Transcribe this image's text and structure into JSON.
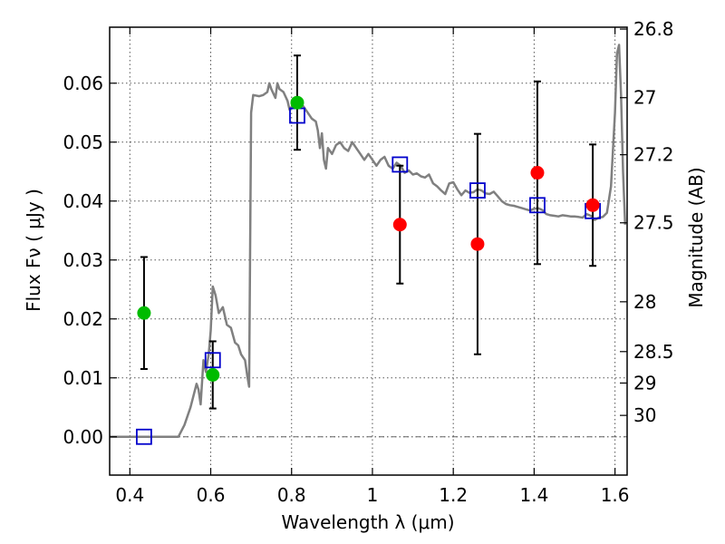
{
  "chart_data": {
    "type": "scatter",
    "xlabel": "Wavelength  λ (μm)",
    "ylabel": "Flux  Fν  ( μJy )",
    "y2label": "Magnitude (AB)",
    "xlim": [
      0.35,
      1.63
    ],
    "ylim": [
      -0.0065,
      0.0695
    ],
    "grid": true,
    "xticks": [
      {
        "value": 0.4,
        "label": "0.4"
      },
      {
        "value": 0.6,
        "label": "0.6"
      },
      {
        "value": 0.8,
        "label": "0.8"
      },
      {
        "value": 1.0,
        "label": "1"
      },
      {
        "value": 1.2,
        "label": "1.2"
      },
      {
        "value": 1.4,
        "label": "1.4"
      },
      {
        "value": 1.6,
        "label": "1.6"
      }
    ],
    "yticks": [
      {
        "value": 0.0,
        "label": "0.00"
      },
      {
        "value": 0.01,
        "label": "0.01"
      },
      {
        "value": 0.02,
        "label": "0.02"
      },
      {
        "value": 0.03,
        "label": "0.03"
      },
      {
        "value": 0.04,
        "label": "0.04"
      },
      {
        "value": 0.05,
        "label": "0.05"
      },
      {
        "value": 0.06,
        "label": "0.06"
      }
    ],
    "y2ticks": [
      {
        "label": "26.8"
      },
      {
        "label": "27"
      },
      {
        "label": "27.2"
      },
      {
        "label": "27.5"
      },
      {
        "label": "28"
      },
      {
        "label": "28.5"
      },
      {
        "label": "29"
      },
      {
        "label": "30"
      }
    ],
    "colors": {
      "model": "#808080",
      "detected": "#00bb00",
      "observed": "#ff0000",
      "synthetic": "#0000cc",
      "errorbar": "#000000",
      "grid": "#555555",
      "zero_line": "#666666"
    },
    "series": [
      {
        "style": "line",
        "color": "#808080",
        "points": [
          [
            0.35,
            0.0
          ],
          [
            0.52,
            0.0
          ],
          [
            0.535,
            0.002
          ],
          [
            0.55,
            0.005
          ],
          [
            0.565,
            0.009
          ],
          [
            0.57,
            0.008
          ],
          [
            0.575,
            0.0055
          ],
          [
            0.582,
            0.013
          ],
          [
            0.588,
            0.011
          ],
          [
            0.595,
            0.014
          ],
          [
            0.6,
            0.018
          ],
          [
            0.605,
            0.0255
          ],
          [
            0.612,
            0.024
          ],
          [
            0.62,
            0.021
          ],
          [
            0.63,
            0.022
          ],
          [
            0.64,
            0.019
          ],
          [
            0.65,
            0.0185
          ],
          [
            0.66,
            0.016
          ],
          [
            0.668,
            0.0155
          ],
          [
            0.675,
            0.014
          ],
          [
            0.685,
            0.013
          ],
          [
            0.69,
            0.0105
          ],
          [
            0.695,
            0.0085
          ],
          [
            0.7,
            0.055
          ],
          [
            0.705,
            0.058
          ],
          [
            0.72,
            0.0578
          ],
          [
            0.73,
            0.058
          ],
          [
            0.74,
            0.0585
          ],
          [
            0.745,
            0.06
          ],
          [
            0.75,
            0.059
          ],
          [
            0.76,
            0.0575
          ],
          [
            0.765,
            0.06
          ],
          [
            0.77,
            0.059
          ],
          [
            0.78,
            0.0585
          ],
          [
            0.79,
            0.057
          ],
          [
            0.795,
            0.0555
          ],
          [
            0.8,
            0.056
          ],
          [
            0.81,
            0.0575
          ],
          [
            0.82,
            0.0568
          ],
          [
            0.83,
            0.056
          ],
          [
            0.84,
            0.055
          ],
          [
            0.85,
            0.054
          ],
          [
            0.86,
            0.0535
          ],
          [
            0.865,
            0.052
          ],
          [
            0.87,
            0.049
          ],
          [
            0.875,
            0.0515
          ],
          [
            0.88,
            0.047
          ],
          [
            0.885,
            0.0455
          ],
          [
            0.89,
            0.049
          ],
          [
            0.9,
            0.048
          ],
          [
            0.91,
            0.0495
          ],
          [
            0.92,
            0.05
          ],
          [
            0.93,
            0.049
          ],
          [
            0.94,
            0.0485
          ],
          [
            0.95,
            0.05
          ],
          [
            0.96,
            0.049
          ],
          [
            0.97,
            0.048
          ],
          [
            0.98,
            0.047
          ],
          [
            0.99,
            0.048
          ],
          [
            1.0,
            0.047
          ],
          [
            1.01,
            0.046
          ],
          [
            1.02,
            0.047
          ],
          [
            1.03,
            0.0475
          ],
          [
            1.04,
            0.046
          ],
          [
            1.05,
            0.0455
          ],
          [
            1.06,
            0.0465
          ],
          [
            1.07,
            0.046
          ],
          [
            1.08,
            0.0448
          ],
          [
            1.09,
            0.0452
          ],
          [
            1.1,
            0.0445
          ],
          [
            1.11,
            0.0447
          ],
          [
            1.12,
            0.0442
          ],
          [
            1.13,
            0.044
          ],
          [
            1.14,
            0.0445
          ],
          [
            1.15,
            0.043
          ],
          [
            1.16,
            0.0425
          ],
          [
            1.17,
            0.0418
          ],
          [
            1.18,
            0.0412
          ],
          [
            1.19,
            0.043
          ],
          [
            1.2,
            0.0432
          ],
          [
            1.21,
            0.042
          ],
          [
            1.22,
            0.041
          ],
          [
            1.23,
            0.0418
          ],
          [
            1.24,
            0.0414
          ],
          [
            1.25,
            0.0415
          ],
          [
            1.26,
            0.042
          ],
          [
            1.27,
            0.0418
          ],
          [
            1.28,
            0.0413
          ],
          [
            1.29,
            0.0412
          ],
          [
            1.3,
            0.0416
          ],
          [
            1.31,
            0.0408
          ],
          [
            1.32,
            0.04
          ],
          [
            1.33,
            0.0395
          ],
          [
            1.34,
            0.0393
          ],
          [
            1.35,
            0.0392
          ],
          [
            1.36,
            0.039
          ],
          [
            1.37,
            0.0388
          ],
          [
            1.38,
            0.0386
          ],
          [
            1.39,
            0.0384
          ],
          [
            1.4,
            0.0387
          ],
          [
            1.41,
            0.0388
          ],
          [
            1.42,
            0.0385
          ],
          [
            1.43,
            0.0378
          ],
          [
            1.44,
            0.0376
          ],
          [
            1.45,
            0.0375
          ],
          [
            1.46,
            0.0374
          ],
          [
            1.47,
            0.0376
          ],
          [
            1.48,
            0.0375
          ],
          [
            1.49,
            0.0374
          ],
          [
            1.5,
            0.0374
          ],
          [
            1.51,
            0.0373
          ],
          [
            1.52,
            0.0372
          ],
          [
            1.53,
            0.0378
          ],
          [
            1.54,
            0.0375
          ],
          [
            1.55,
            0.0368
          ],
          [
            1.56,
            0.0372
          ],
          [
            1.57,
            0.0373
          ],
          [
            1.58,
            0.038
          ],
          [
            1.59,
            0.0425
          ],
          [
            1.6,
            0.055
          ],
          [
            1.605,
            0.065
          ],
          [
            1.61,
            0.0665
          ],
          [
            1.615,
            0.058
          ],
          [
            1.62,
            0.045
          ],
          [
            1.625,
            0.036
          ]
        ]
      },
      {
        "style": "circle",
        "color": "#00bb00",
        "points": [
          {
            "x": 0.435,
            "y": 0.021,
            "err": 0.0095
          },
          {
            "x": 0.605,
            "y": 0.0105,
            "err": 0.0057
          },
          {
            "x": 0.814,
            "y": 0.0567,
            "err": 0.008
          }
        ]
      },
      {
        "style": "circle",
        "color": "#ff0000",
        "points": [
          {
            "x": 1.068,
            "y": 0.036,
            "err": 0.01
          },
          {
            "x": 1.26,
            "y": 0.0327,
            "err": 0.0187
          },
          {
            "x": 1.408,
            "y": 0.0448,
            "err": 0.0155
          },
          {
            "x": 1.545,
            "y": 0.0393,
            "err": 0.0103
          }
        ]
      },
      {
        "style": "square",
        "color": "#0000cc",
        "points": [
          {
            "x": 0.435,
            "y": 0.0
          },
          {
            "x": 0.605,
            "y": 0.013
          },
          {
            "x": 0.814,
            "y": 0.0545
          },
          {
            "x": 1.068,
            "y": 0.0462
          },
          {
            "x": 1.26,
            "y": 0.0418
          },
          {
            "x": 1.408,
            "y": 0.0393
          },
          {
            "x": 1.545,
            "y": 0.0383
          }
        ]
      }
    ]
  }
}
